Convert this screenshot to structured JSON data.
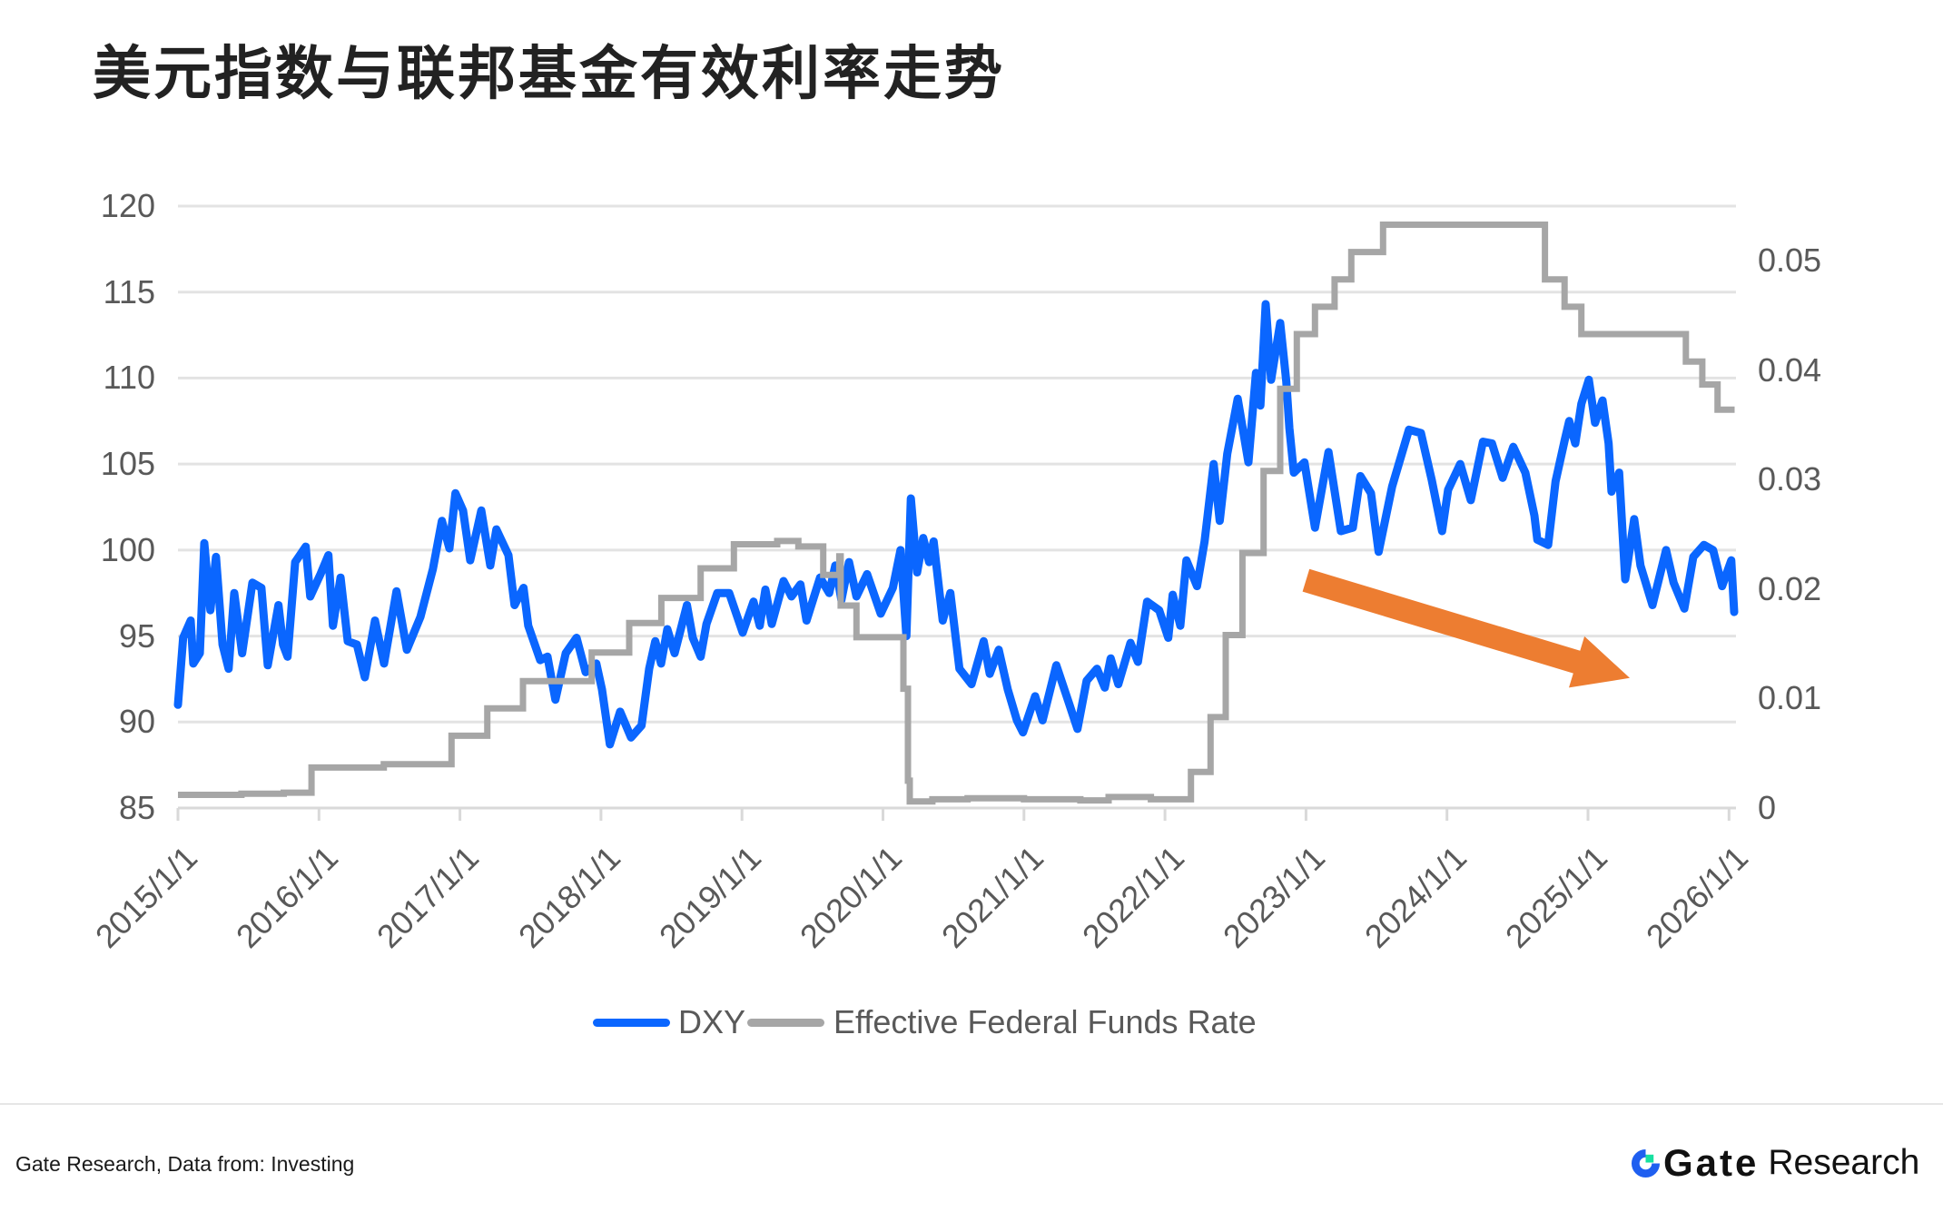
{
  "title": "美元指数与联邦基金有效利率走势",
  "chart_data": {
    "type": "line",
    "title": "美元指数与联邦基金有效利率走势",
    "xlabel": "",
    "ylabel_left": "",
    "ylabel_right": "",
    "grid": true,
    "legend_position": "bottom",
    "x_axis": {
      "type": "date_decimal_year",
      "range": [
        2015.0,
        2026.07
      ],
      "tick_values": [
        2015,
        2016,
        2017,
        2018,
        2019,
        2020,
        2021,
        2022,
        2023,
        2024,
        2025,
        2026
      ],
      "tick_labels": [
        "2015/1/1",
        "2016/1/1",
        "2017/1/1",
        "2018/1/1",
        "2019/1/1",
        "2020/1/1",
        "2021/1/1",
        "2022/1/1",
        "2023/1/1",
        "2024/1/1",
        "2025/1/1",
        "2026/1/1"
      ],
      "label_rotation": -45
    },
    "y_left": {
      "range": [
        85,
        120
      ],
      "ticks": [
        85,
        90,
        95,
        100,
        105,
        110,
        115,
        120
      ],
      "tick_labels": [
        "85",
        "90",
        "95",
        "100",
        "105",
        "110",
        "115",
        "120"
      ]
    },
    "y_right": {
      "range": [
        0,
        0.055
      ],
      "ticks": [
        0,
        0.01,
        0.02,
        0.03,
        0.04,
        0.05
      ],
      "tick_labels": [
        "0",
        "0.01",
        "0.02",
        "0.03",
        "0.04",
        "0.05"
      ]
    },
    "series": [
      {
        "name": "DXY",
        "axis": "left",
        "color": "#0A66FF",
        "step": false,
        "x": [
          2015.0,
          2015.037,
          2015.09,
          2015.109,
          2015.155,
          2015.187,
          2015.23,
          2015.27,
          2015.316,
          2015.359,
          2015.399,
          2015.455,
          2015.528,
          2015.592,
          2015.637,
          2015.713,
          2015.745,
          2015.777,
          2015.831,
          2015.906,
          2015.938,
          2016.011,
          2016.067,
          2016.099,
          2016.153,
          2016.204,
          2016.269,
          2016.325,
          2016.397,
          2016.462,
          2016.55,
          2016.623,
          2016.719,
          2016.808,
          2016.872,
          2016.925,
          2016.968,
          2017.022,
          2017.073,
          2017.151,
          2017.215,
          2017.258,
          2017.344,
          2017.387,
          2017.451,
          2017.484,
          2017.569,
          2017.621,
          2017.677,
          2017.75,
          2017.827,
          2017.891,
          2017.967,
          2018.007,
          2018.063,
          2018.136,
          2018.213,
          2018.288,
          2018.342,
          2018.385,
          2018.426,
          2018.471,
          2018.522,
          2018.61,
          2018.651,
          2018.707,
          2018.748,
          2018.825,
          2018.909,
          2019.005,
          2019.082,
          2019.126,
          2019.166,
          2019.211,
          2019.295,
          2019.351,
          2019.415,
          2019.458,
          2019.554,
          2019.619,
          2019.662,
          2019.705,
          2019.759,
          2019.812,
          2019.887,
          2019.984,
          2020.07,
          2020.124,
          2020.166,
          2020.198,
          2020.242,
          2020.285,
          2020.327,
          2020.359,
          2020.424,
          2020.478,
          2020.542,
          2020.628,
          2020.714,
          2020.757,
          2020.821,
          2020.885,
          2020.95,
          2020.993,
          2021.079,
          2021.132,
          2021.229,
          2021.315,
          2021.379,
          2021.444,
          2021.518,
          2021.573,
          2021.615,
          2021.669,
          2021.755,
          2021.808,
          2021.873,
          2021.959,
          2022.023,
          2022.055,
          2022.109,
          2022.152,
          2022.227,
          2022.281,
          2022.345,
          2022.388,
          2022.442,
          2022.516,
          2022.592,
          2022.645,
          2022.677,
          2022.714,
          2022.753,
          2022.817,
          2022.86,
          2022.882,
          2022.914,
          2022.989,
          2023.064,
          2023.16,
          2023.247,
          2023.332,
          2023.386,
          2023.461,
          2023.515,
          2023.611,
          2023.73,
          2023.815,
          2023.891,
          2023.965,
          2024.008,
          2024.094,
          2024.169,
          2024.255,
          2024.319,
          2024.395,
          2024.47,
          2024.556,
          2024.62,
          2024.641,
          2024.717,
          2024.77,
          2024.835,
          2024.867,
          2024.91,
          2024.953,
          2025.006,
          2025.05,
          2025.103,
          2025.146,
          2025.167,
          2025.221,
          2025.264,
          2025.328,
          2025.372,
          2025.457,
          2025.554,
          2025.607,
          2025.683,
          2025.747,
          2025.822,
          2025.887,
          2025.951,
          2026.016,
          2026.037
        ],
        "values": [
          91.0,
          94.9,
          95.9,
          93.4,
          94.0,
          100.4,
          96.5,
          99.6,
          94.5,
          93.1,
          97.5,
          94.0,
          98.1,
          97.8,
          93.3,
          96.8,
          94.5,
          93.8,
          99.3,
          100.2,
          97.3,
          98.6,
          99.7,
          95.6,
          98.4,
          94.7,
          94.5,
          92.6,
          95.9,
          93.4,
          97.6,
          94.2,
          96.1,
          98.9,
          101.7,
          100.1,
          103.3,
          102.3,
          99.4,
          102.3,
          99.1,
          101.2,
          99.7,
          96.8,
          97.8,
          95.6,
          93.6,
          93.8,
          91.3,
          94.0,
          94.9,
          92.9,
          93.4,
          91.9,
          88.7,
          90.6,
          89.1,
          89.8,
          93.1,
          94.7,
          93.4,
          95.4,
          94.0,
          96.8,
          94.9,
          93.8,
          95.7,
          97.5,
          97.5,
          95.2,
          97.0,
          95.6,
          97.7,
          95.7,
          98.2,
          97.3,
          98.0,
          95.9,
          98.4,
          97.5,
          99.1,
          97.1,
          99.3,
          97.3,
          98.6,
          96.3,
          97.8,
          100.0,
          95.0,
          103.0,
          98.7,
          100.7,
          99.3,
          100.5,
          95.9,
          97.5,
          93.1,
          92.2,
          94.7,
          92.8,
          94.2,
          91.9,
          90.1,
          89.4,
          91.5,
          90.1,
          93.3,
          91.2,
          89.6,
          92.4,
          93.1,
          92.0,
          93.7,
          92.2,
          94.6,
          93.5,
          97.0,
          96.5,
          94.9,
          97.4,
          95.6,
          99.4,
          97.9,
          100.5,
          105.0,
          101.7,
          105.6,
          108.8,
          105.1,
          110.3,
          108.4,
          114.3,
          109.9,
          113.2,
          109.8,
          107.1,
          104.5,
          105.1,
          101.3,
          105.7,
          101.1,
          101.3,
          104.3,
          103.3,
          99.9,
          103.7,
          107.0,
          106.8,
          104.1,
          101.1,
          103.5,
          105.0,
          102.9,
          106.3,
          106.2,
          104.2,
          106.0,
          104.5,
          102.0,
          100.6,
          100.3,
          104.0,
          106.4,
          107.5,
          106.2,
          108.5,
          109.9,
          107.4,
          108.7,
          106.2,
          103.4,
          104.5,
          98.3,
          101.8,
          99.1,
          96.8,
          100.0,
          98.1,
          96.6,
          99.6,
          100.3,
          100.0,
          97.9,
          99.4,
          96.4
        ]
      },
      {
        "name": "Effective Federal Funds Rate",
        "axis": "right",
        "color": "#A6A6A6",
        "step": true,
        "x_end": 2026.04,
        "x": [
          2015.0,
          2015.45,
          2015.75,
          2015.947,
          2016.46,
          2016.94,
          2017.194,
          2017.447,
          2017.934,
          2018.2,
          2018.428,
          2018.707,
          2018.943,
          2019.25,
          2019.4,
          2019.576,
          2019.69,
          2019.7,
          2019.812,
          2020.145,
          2020.177,
          2020.19,
          2020.35,
          2020.6,
          2021.0,
          2021.4,
          2021.6,
          2021.9,
          2022.184,
          2022.323,
          2022.431,
          2022.549,
          2022.699,
          2022.817,
          2022.935,
          2023.064,
          2023.203,
          2023.321,
          2023.547,
          2024.695,
          2024.834,
          2024.953,
          2025.694,
          2025.811,
          2025.919
        ],
        "values": [
          0.0012,
          0.0013,
          0.0014,
          0.0037,
          0.004,
          0.0066,
          0.0091,
          0.0116,
          0.0142,
          0.0169,
          0.0192,
          0.0219,
          0.0241,
          0.0244,
          0.0239,
          0.0213,
          0.023,
          0.0185,
          0.0156,
          0.0109,
          0.0025,
          0.0006,
          0.0008,
          0.0009,
          0.0008,
          0.0007,
          0.001,
          0.0008,
          0.0033,
          0.0083,
          0.0158,
          0.0233,
          0.0308,
          0.0383,
          0.0433,
          0.0458,
          0.0483,
          0.0508,
          0.0533,
          0.0483,
          0.0458,
          0.0433,
          0.0408,
          0.0387,
          0.0364
        ]
      }
    ],
    "annotations": [
      {
        "type": "arrow",
        "meaning": "downtrend",
        "color": "#ED7D31",
        "axis": "left",
        "from": [
          2023.0,
          98.24
        ],
        "to": [
          2025.296,
          92.56
        ],
        "shaft_width": 26,
        "head_width": 59,
        "head_length": 61
      }
    ]
  },
  "footer": {
    "source": "Gate Research, Data from: Investing",
    "brand": {
      "name": "Gate",
      "suffix": "Research",
      "icon": "gate-logo-icon",
      "colors": {
        "blue": "#1F5FF0",
        "green": "#17E0A0"
      }
    }
  }
}
